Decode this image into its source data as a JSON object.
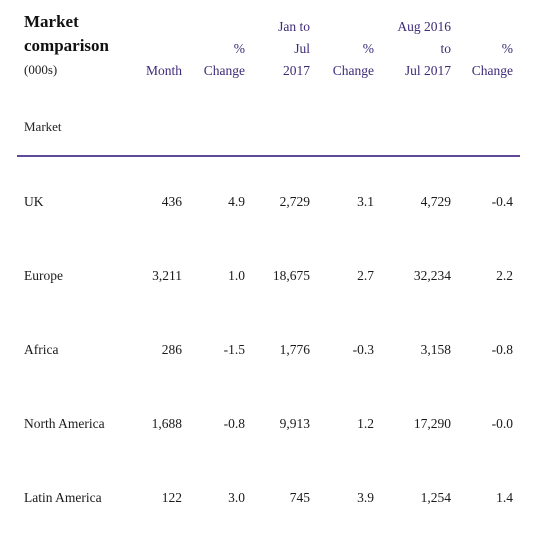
{
  "title": {
    "line1": "Market",
    "line2": "comparison",
    "units": "(000s)"
  },
  "columns": [
    {
      "lines": [
        "Month"
      ]
    },
    {
      "lines": [
        "%",
        "Change"
      ]
    },
    {
      "lines": [
        "Jan to",
        "Jul",
        "2017"
      ]
    },
    {
      "lines": [
        "%",
        "Change"
      ]
    },
    {
      "lines": [
        "Aug 2016",
        "to",
        "Jul 2017"
      ]
    },
    {
      "lines": [
        "%",
        "Change"
      ]
    }
  ],
  "row_header": "Market",
  "rows": [
    {
      "market": "UK",
      "values": [
        "436",
        "4.9",
        "2,729",
        "3.1",
        "4,729",
        "-0.4"
      ]
    },
    {
      "market": "Europe",
      "values": [
        "3,211",
        "1.0",
        "18,675",
        "2.7",
        "32,234",
        "2.2"
      ]
    },
    {
      "market": "Africa",
      "values": [
        "286",
        "-1.5",
        "1,776",
        "-0.3",
        "3,158",
        "-0.8"
      ]
    },
    {
      "market": "North America",
      "values": [
        "1,688",
        "-0.8",
        "9,913",
        "1.2",
        "17,290",
        "-0.0"
      ]
    },
    {
      "market": "Latin America",
      "values": [
        "122",
        "3.0",
        "745",
        "3.9",
        "1,254",
        "1.4"
      ]
    }
  ],
  "colors": {
    "header_text": "#3d2a78",
    "rule": "#5e4a99"
  }
}
